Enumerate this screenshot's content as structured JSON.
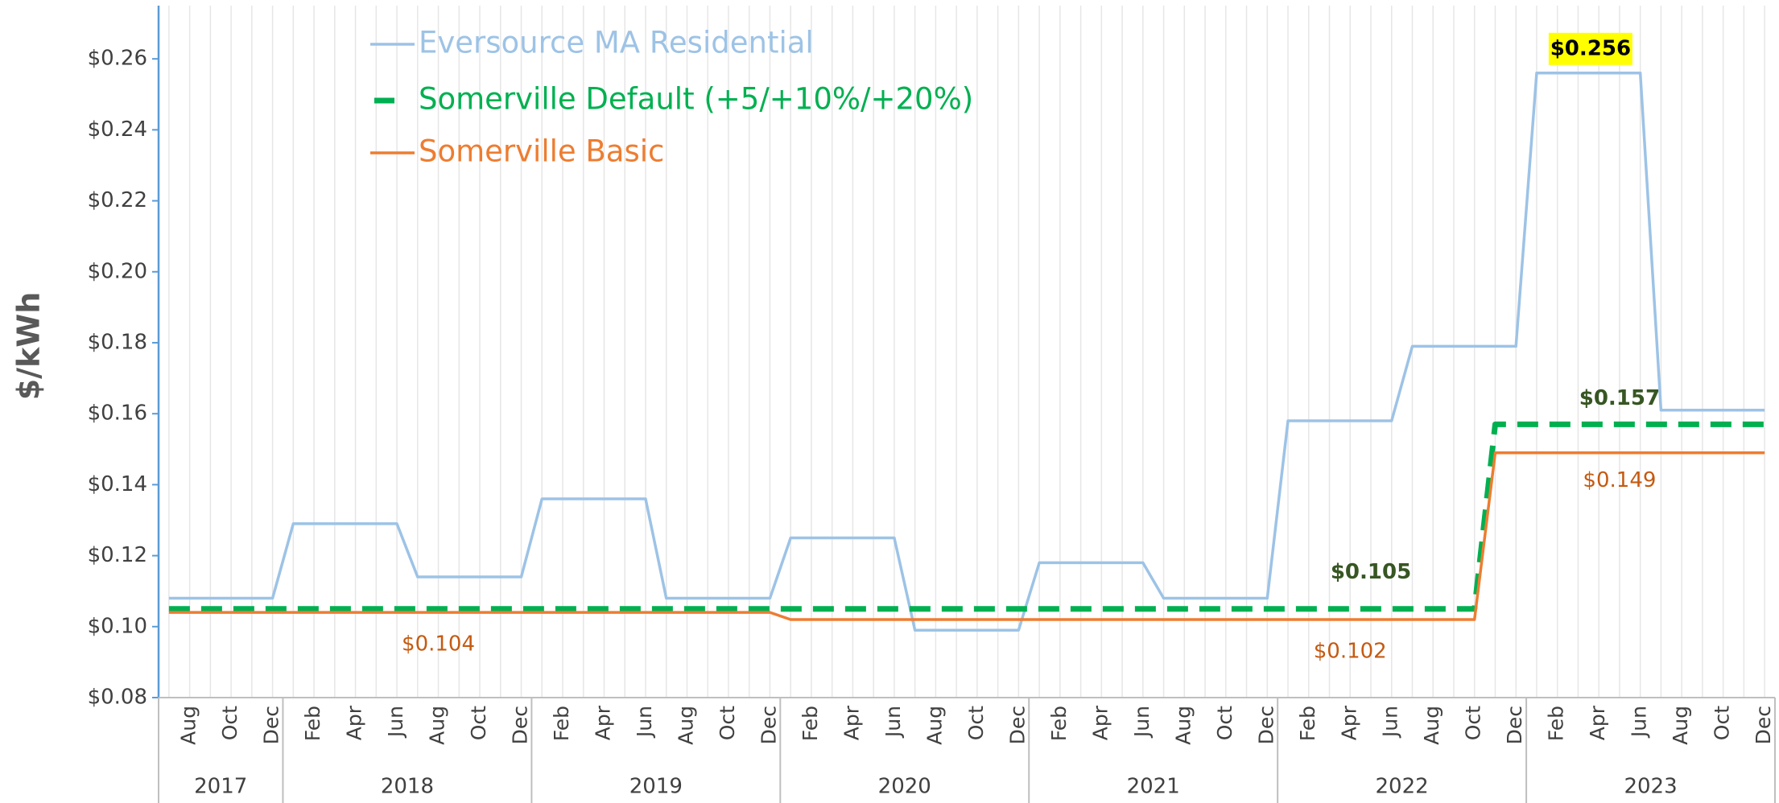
{
  "chart_data": {
    "type": "line",
    "y_label": "$/kWh",
    "categories": [
      null,
      "Aug",
      null,
      "Oct",
      null,
      "Dec",
      null,
      "Feb",
      null,
      "Apr",
      null,
      "Jun",
      null,
      "Aug",
      null,
      "Oct",
      null,
      "Dec",
      null,
      "Feb",
      null,
      "Apr",
      null,
      "Jun",
      null,
      "Aug",
      null,
      "Oct",
      null,
      "Dec",
      null,
      "Feb",
      null,
      "Apr",
      null,
      "Jun",
      null,
      "Aug",
      null,
      "Oct",
      null,
      "Dec",
      null,
      "Feb",
      null,
      "Apr",
      null,
      "Jun",
      null,
      "Aug",
      null,
      "Oct",
      null,
      "Dec",
      null,
      "Feb",
      null,
      "Apr",
      null,
      "Jun",
      null,
      "Aug",
      null,
      "Oct",
      null,
      "Dec",
      null,
      "Feb",
      null,
      "Apr",
      null,
      "Jun",
      null,
      "Aug",
      null,
      "Oct",
      null,
      "Dec"
    ],
    "year_groups": [
      {
        "label": "2017",
        "count": 6
      },
      {
        "label": "2018",
        "count": 12
      },
      {
        "label": "2019",
        "count": 12
      },
      {
        "label": "2020",
        "count": 12
      },
      {
        "label": "2021",
        "count": 12
      },
      {
        "label": "2022",
        "count": 12
      },
      {
        "label": "2023",
        "count": 12
      }
    ],
    "series": [
      {
        "name": "Eversource MA Residential",
        "color": "#9dc3e6",
        "dash": false,
        "values": [
          0.108,
          0.108,
          0.108,
          0.108,
          0.108,
          0.108,
          0.129,
          0.129,
          0.129,
          0.129,
          0.129,
          0.129,
          0.114,
          0.114,
          0.114,
          0.114,
          0.114,
          0.114,
          0.136,
          0.136,
          0.136,
          0.136,
          0.136,
          0.136,
          0.108,
          0.108,
          0.108,
          0.108,
          0.108,
          0.108,
          0.125,
          0.125,
          0.125,
          0.125,
          0.125,
          0.125,
          0.099,
          0.099,
          0.099,
          0.099,
          0.099,
          0.099,
          0.118,
          0.118,
          0.118,
          0.118,
          0.118,
          0.118,
          0.108,
          0.108,
          0.108,
          0.108,
          0.108,
          0.108,
          0.158,
          0.158,
          0.158,
          0.158,
          0.158,
          0.158,
          0.179,
          0.179,
          0.179,
          0.179,
          0.179,
          0.179,
          0.256,
          0.256,
          0.256,
          0.256,
          0.256,
          0.256,
          0.161,
          0.161,
          0.161,
          0.161,
          0.161,
          0.161
        ]
      },
      {
        "name": "Somerville Default (+5/+10%/+20%)",
        "color": "#00b050",
        "dash": true,
        "values": [
          0.105,
          0.105,
          0.105,
          0.105,
          0.105,
          0.105,
          0.105,
          0.105,
          0.105,
          0.105,
          0.105,
          0.105,
          0.105,
          0.105,
          0.105,
          0.105,
          0.105,
          0.105,
          0.105,
          0.105,
          0.105,
          0.105,
          0.105,
          0.105,
          0.105,
          0.105,
          0.105,
          0.105,
          0.105,
          0.105,
          0.105,
          0.105,
          0.105,
          0.105,
          0.105,
          0.105,
          0.105,
          0.105,
          0.105,
          0.105,
          0.105,
          0.105,
          0.105,
          0.105,
          0.105,
          0.105,
          0.105,
          0.105,
          0.105,
          0.105,
          0.105,
          0.105,
          0.105,
          0.105,
          0.105,
          0.105,
          0.105,
          0.105,
          0.105,
          0.105,
          0.105,
          0.105,
          0.105,
          0.105,
          0.157,
          0.157,
          0.157,
          0.157,
          0.157,
          0.157,
          0.157,
          0.157,
          0.157,
          0.157,
          0.157,
          0.157,
          0.157,
          0.157
        ]
      },
      {
        "name": "Somerville Basic",
        "color": "#ed7d31",
        "dash": false,
        "values": [
          0.104,
          0.104,
          0.104,
          0.104,
          0.104,
          0.104,
          0.104,
          0.104,
          0.104,
          0.104,
          0.104,
          0.104,
          0.104,
          0.104,
          0.104,
          0.104,
          0.104,
          0.104,
          0.104,
          0.104,
          0.104,
          0.104,
          0.104,
          0.104,
          0.104,
          0.104,
          0.104,
          0.104,
          0.104,
          0.104,
          0.102,
          0.102,
          0.102,
          0.102,
          0.102,
          0.102,
          0.102,
          0.102,
          0.102,
          0.102,
          0.102,
          0.102,
          0.102,
          0.102,
          0.102,
          0.102,
          0.102,
          0.102,
          0.102,
          0.102,
          0.102,
          0.102,
          0.102,
          0.102,
          0.102,
          0.102,
          0.102,
          0.102,
          0.102,
          0.102,
          0.102,
          0.102,
          0.102,
          0.102,
          0.149,
          0.149,
          0.149,
          0.149,
          0.149,
          0.149,
          0.149,
          0.149,
          0.149,
          0.149,
          0.149,
          0.149,
          0.149,
          0.149
        ]
      }
    ],
    "annotations": [
      {
        "text": "$0.256",
        "value": 0.256,
        "color": "#000000",
        "highlight": "#ffff00"
      },
      {
        "text": "$0.157",
        "value": 0.157,
        "color": "#375623"
      },
      {
        "text": "$0.105",
        "value": 0.105,
        "color": "#375623"
      },
      {
        "text": "$0.149",
        "value": 0.149,
        "color": "#c55a11"
      },
      {
        "text": "$0.104",
        "value": 0.104,
        "color": "#c55a11"
      },
      {
        "text": "$0.102",
        "value": 0.102,
        "color": "#c55a11"
      }
    ],
    "ylim": [
      0.08,
      0.275
    ],
    "yticks": [
      {
        "value": 0.08,
        "label": "$0.08"
      },
      {
        "value": 0.1,
        "label": "$0.10"
      },
      {
        "value": 0.12,
        "label": "$0.12"
      },
      {
        "value": 0.14,
        "label": "$0.14"
      },
      {
        "value": 0.16,
        "label": "$0.16"
      },
      {
        "value": 0.18,
        "label": "$0.18"
      },
      {
        "value": 0.2,
        "label": "$0.20"
      },
      {
        "value": 0.22,
        "label": "$0.22"
      },
      {
        "value": 0.24,
        "label": "$0.24"
      },
      {
        "value": 0.26,
        "label": "$0.26"
      }
    ],
    "grid": true,
    "legend": "upper left"
  }
}
